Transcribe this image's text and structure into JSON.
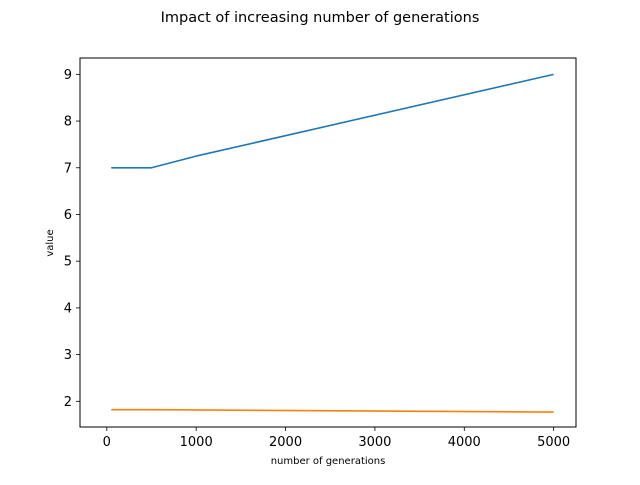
{
  "chart_data": {
    "type": "line",
    "title": "Impact of increasing number of generations",
    "xlabel": "number of generations",
    "ylabel": "value",
    "x": [
      50,
      500,
      1000,
      5000
    ],
    "series": [
      {
        "values": [
          7.0,
          7.0,
          7.25,
          9.0
        ]
      },
      {
        "values": [
          1.82,
          1.82,
          1.815,
          1.77
        ]
      }
    ],
    "xlim": [
      -300,
      5250
    ],
    "ylim": [
      1.45,
      9.35
    ],
    "xticks": [
      0,
      1000,
      2000,
      3000,
      4000,
      5000
    ],
    "yticks": [
      2,
      3,
      4,
      5,
      6,
      7,
      8,
      9
    ],
    "colors": [
      "#1f77b4",
      "#ff7f0e"
    ],
    "grid": false,
    "legend": "none"
  }
}
